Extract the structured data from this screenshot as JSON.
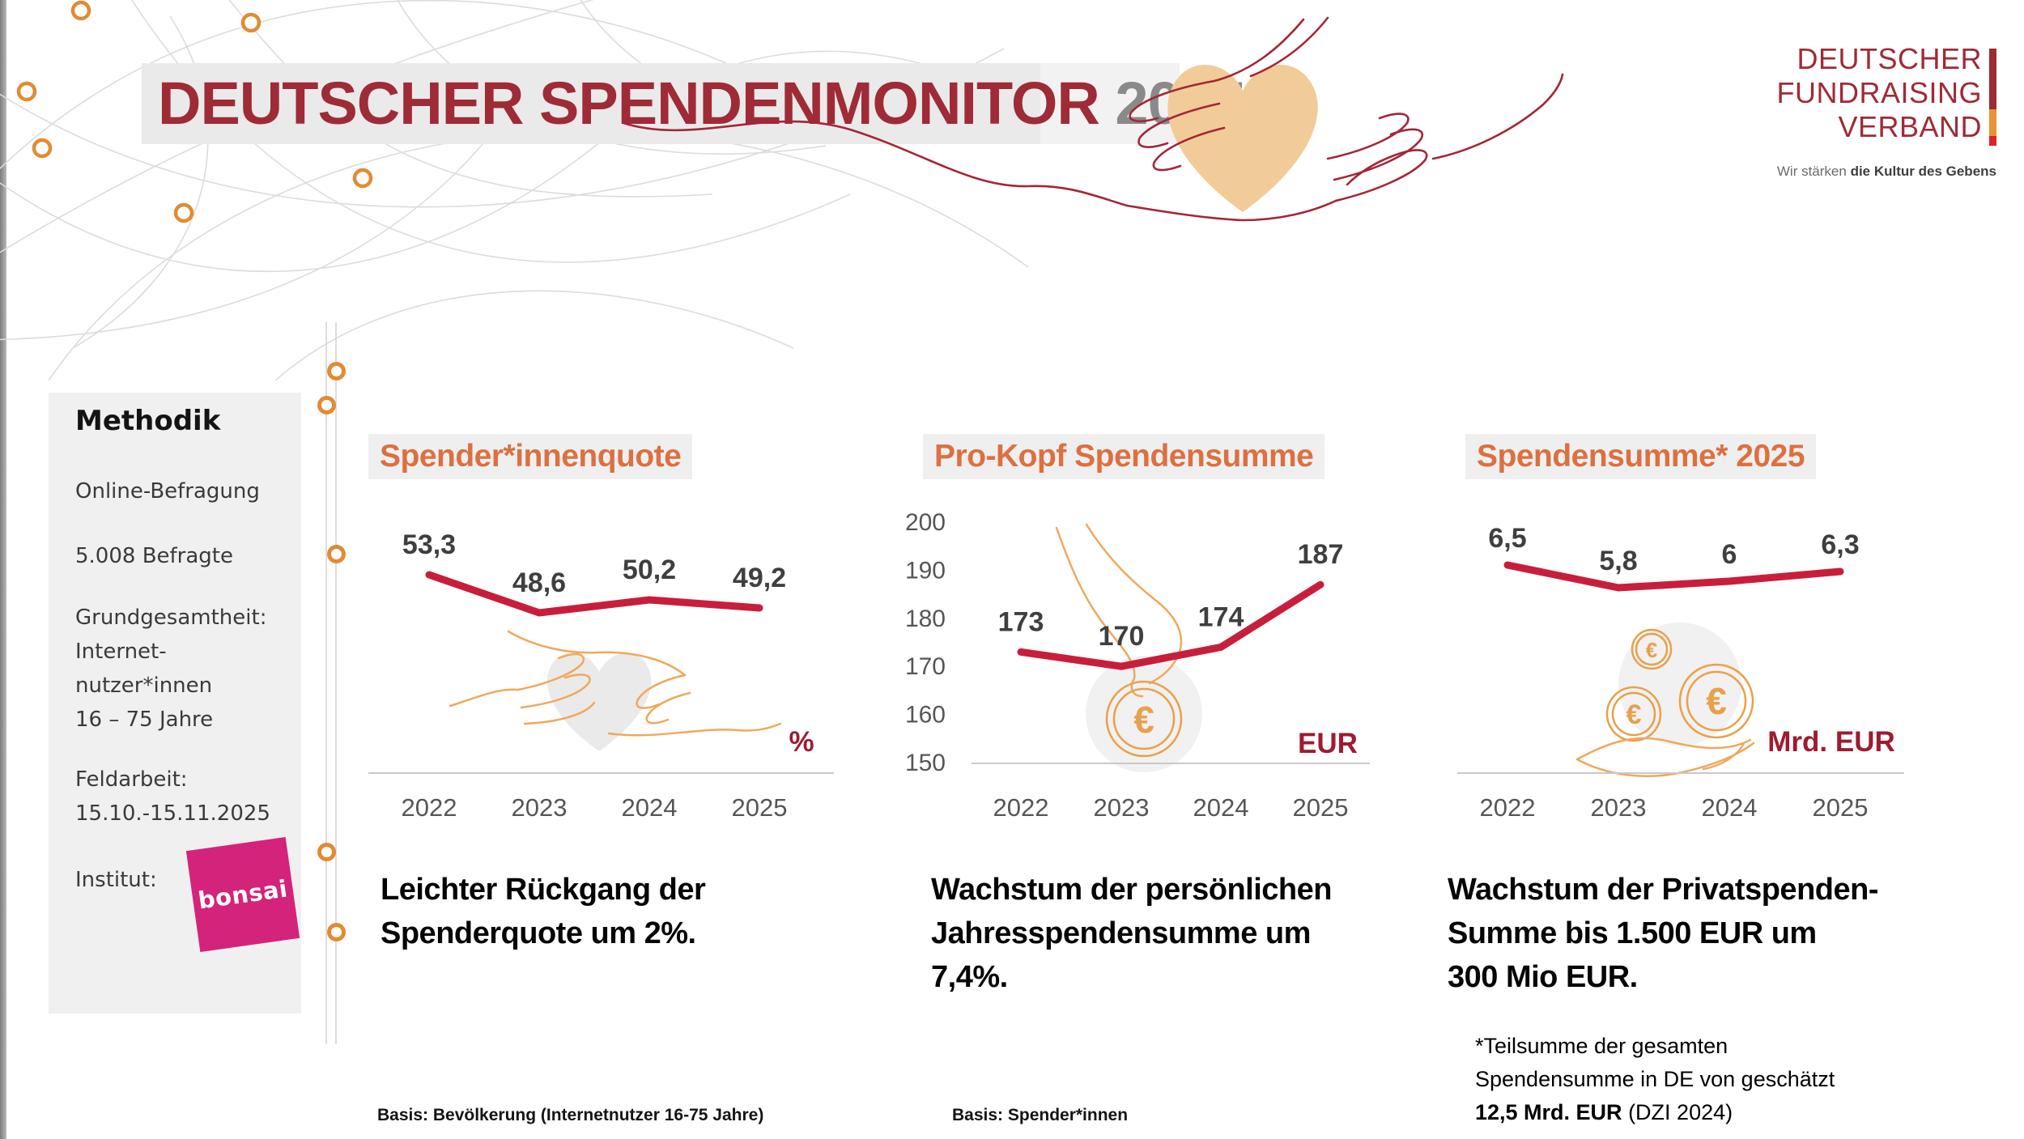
{
  "header": {
    "title_main": "DEUTSCHER SPENDENMONITOR",
    "title_year": "2025"
  },
  "brand": {
    "line1": "DEUTSCHER",
    "line2": "FUNDRAISING",
    "line3": "VERBAND",
    "tagline_prefix": "Wir stärken ",
    "tagline_bold": "die Kultur des Gebens"
  },
  "methodik": {
    "heading": "Methodik",
    "lines": [
      "Online-Befragung",
      "5.008 Befragte",
      "Grundgesamtheit:",
      "Internet-",
      "nutzer*innen",
      "16 – 75 Jahre",
      "Feldarbeit:",
      "15.10.-15.11.2025"
    ],
    "institut_label": "Institut:",
    "institut_logo": "bonsai"
  },
  "chart_data": [
    {
      "type": "line",
      "title": "Spender*innenquote",
      "categories": [
        "2022",
        "2023",
        "2024",
        "2025"
      ],
      "values": [
        53.3,
        48.6,
        50.2,
        49.2
      ],
      "value_labels": [
        "53,3",
        "48,6",
        "50,2",
        "49,2"
      ],
      "unit": "%",
      "ylim": [
        45,
        57
      ],
      "grid": false,
      "legend": "none",
      "line_color": "#C81E3C"
    },
    {
      "type": "line",
      "title": "Pro-Kopf Spendensumme",
      "categories": [
        "2022",
        "2023",
        "2024",
        "2025"
      ],
      "values": [
        173,
        170,
        174,
        187
      ],
      "value_labels": [
        "173",
        "170",
        "174",
        "187"
      ],
      "unit": "EUR",
      "yticks": [
        200,
        190,
        180,
        170,
        160,
        150
      ],
      "ylim": [
        150,
        200
      ],
      "grid": false,
      "legend": "none",
      "line_color": "#C81E3C"
    },
    {
      "type": "line",
      "title": "Spendensumme* 2025",
      "categories": [
        "2022",
        "2023",
        "2024",
        "2025"
      ],
      "values": [
        6.5,
        5.8,
        6.0,
        6.3
      ],
      "value_labels": [
        "6,5",
        "5,8",
        "6",
        "6,3"
      ],
      "unit": "Mrd. EUR",
      "ylim": [
        5.2,
        7.5
      ],
      "grid": false,
      "legend": "none",
      "line_color": "#C81E3C"
    }
  ],
  "panels": [
    {
      "caption_lines": [
        "Leichter Rückgang der",
        "Spenderquote um 2%."
      ],
      "basis": "Basis: Bevölkerung (Internetnutzer 16-75 Jahre)"
    },
    {
      "caption_lines": [
        "Wachstum der persönlichen",
        "Jahresspendensumme um",
        "7,4%."
      ],
      "basis": "Basis: Spender*innen"
    },
    {
      "caption_lines": [
        "Wachstum der Privatspenden-",
        "Summe bis 1.500 EUR um",
        "300 Mio EUR."
      ]
    }
  ],
  "footnote": {
    "line1": "*Teilsumme der gesamten",
    "line2": "Spendensumme in DE von geschätzt",
    "line3_bold": "12,5 Mrd. EUR",
    "line3_rest": " (DZI 2024)"
  },
  "icons": {
    "euro": "€"
  },
  "colors": {
    "dark_red": "#9E2B36",
    "line_red": "#C81E3C",
    "title_orange": "#DC7040",
    "ring_orange": "#E28B33",
    "bonsai_pink": "#D4237A",
    "unit_red": "#9E1B32",
    "title_bar_gray": "#EAEAEA"
  }
}
